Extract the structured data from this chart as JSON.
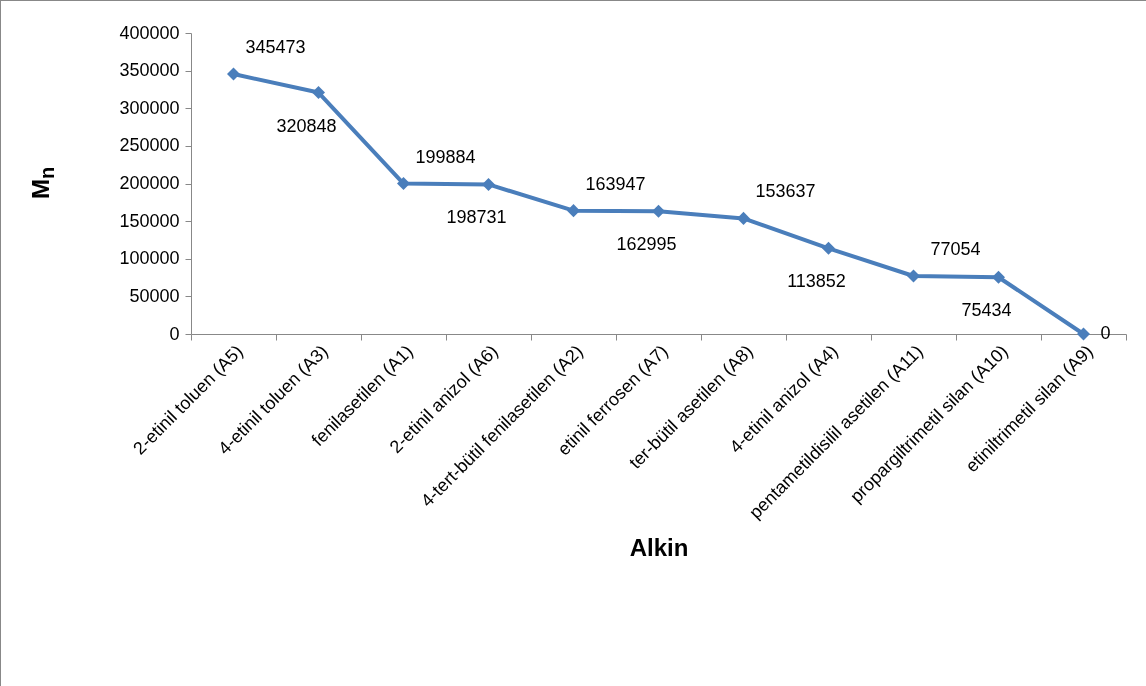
{
  "chart_data": {
    "type": "line",
    "xlabel": "Alkin",
    "ylabel": "M$_{n}$",
    "categories": [
      "2-etinil toluen (A5)",
      "4-etinil toluen (A3)",
      "fenilasetilen (A1)",
      "2-etinil anizol (A6)",
      "4-tert-bütil fenilasetilen (A2)",
      "etinil ferrosen (A7)",
      "ter-bütil asetilen (A8)",
      "4-etinil anizol (A4)",
      "pentametildisilil asetilen (A11)",
      "propargiltrimetil silan (A10)",
      "etiniltrimetil silan (A9)"
    ],
    "series": [
      {
        "color": "#4a7ebb",
        "values": [
          345473,
          320848,
          199884,
          198731,
          163947,
          162995,
          153637,
          113852,
          77054,
          75434,
          0
        ]
      }
    ],
    "ylim": [
      0,
      400000
    ],
    "yticks": [
      0,
      50000,
      100000,
      150000,
      200000,
      250000,
      300000,
      350000,
      400000
    ],
    "grid": false,
    "legend": false,
    "marker": "diamond",
    "line_style": "solid",
    "data_labels": true
  }
}
